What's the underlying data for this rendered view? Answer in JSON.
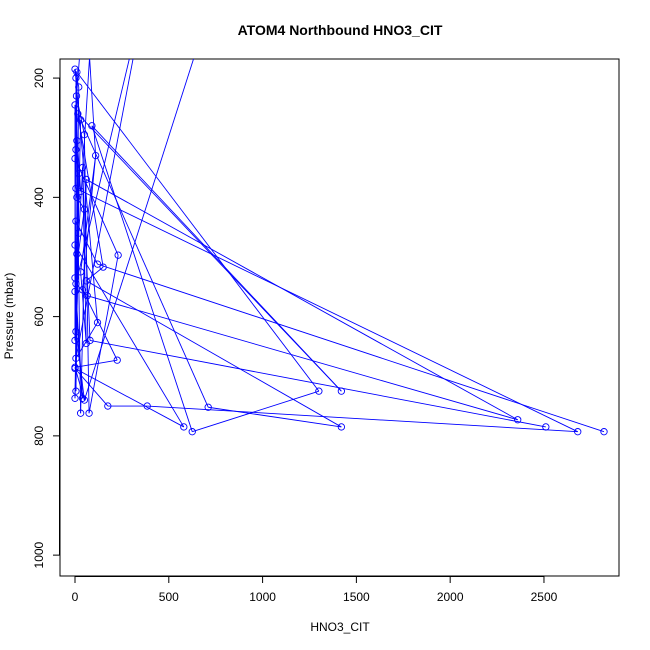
{
  "chart_data": {
    "type": "line",
    "title": "ATOM4 Northbound HNO3_CIT",
    "xlabel": "HNO3_CIT",
    "ylabel": "Pressure (mbar)",
    "xlim": [
      -80,
      2900
    ],
    "ylim": [
      1035,
      168
    ],
    "y_reversed": true,
    "xticks": [
      0,
      500,
      1000,
      1500,
      2000,
      2500
    ],
    "yticks": [
      200,
      400,
      600,
      800,
      1000
    ],
    "grid": false,
    "legend": "none",
    "series": [
      {
        "color": "#0000ff",
        "marker": "open-circle",
        "points": [
          [
            0,
            185
          ],
          [
            10,
            190
          ],
          [
            5,
            200
          ],
          [
            20,
            215
          ],
          [
            8,
            230
          ],
          [
            0,
            245
          ],
          [
            15,
            260
          ],
          [
            30,
            270
          ],
          [
            90,
            280
          ],
          [
            50,
            295
          ],
          [
            10,
            305
          ],
          [
            5,
            320
          ],
          [
            0,
            335
          ],
          [
            110,
            330
          ],
          [
            40,
            350
          ],
          [
            20,
            360
          ],
          [
            60,
            370
          ],
          [
            5,
            385
          ],
          [
            30,
            390
          ],
          [
            10,
            400
          ],
          [
            50,
            420
          ],
          [
            5,
            440
          ],
          [
            20,
            460
          ],
          [
            0,
            480
          ],
          [
            10,
            495
          ],
          [
            230,
            497
          ],
          [
            120,
            512
          ],
          [
            150,
            517
          ],
          [
            30,
            525
          ],
          [
            0,
            535
          ],
          [
            60,
            540
          ],
          [
            5,
            545
          ],
          [
            40,
            555
          ],
          [
            0,
            558
          ],
          [
            65,
            565
          ],
          [
            120,
            610
          ],
          [
            5,
            625
          ],
          [
            80,
            640
          ],
          [
            0,
            640
          ],
          [
            60,
            645
          ],
          [
            5,
            670
          ],
          [
            225,
            673
          ],
          [
            0,
            685
          ],
          [
            0,
            687
          ],
          [
            1300,
            725
          ],
          [
            1420,
            725
          ],
          [
            5,
            725
          ],
          [
            0,
            737
          ],
          [
            40,
            737
          ],
          [
            50,
            740
          ],
          [
            175,
            750
          ],
          [
            385,
            750
          ],
          [
            710,
            752
          ],
          [
            30,
            762
          ],
          [
            75,
            762
          ],
          [
            2360,
            773
          ],
          [
            580,
            785
          ],
          [
            1420,
            785
          ],
          [
            2510,
            785
          ],
          [
            625,
            793
          ],
          [
            2680,
            793
          ],
          [
            2820,
            793
          ]
        ],
        "top_offscale_x": [
          40,
          65,
          90,
          340,
          350,
          700
        ]
      }
    ]
  }
}
